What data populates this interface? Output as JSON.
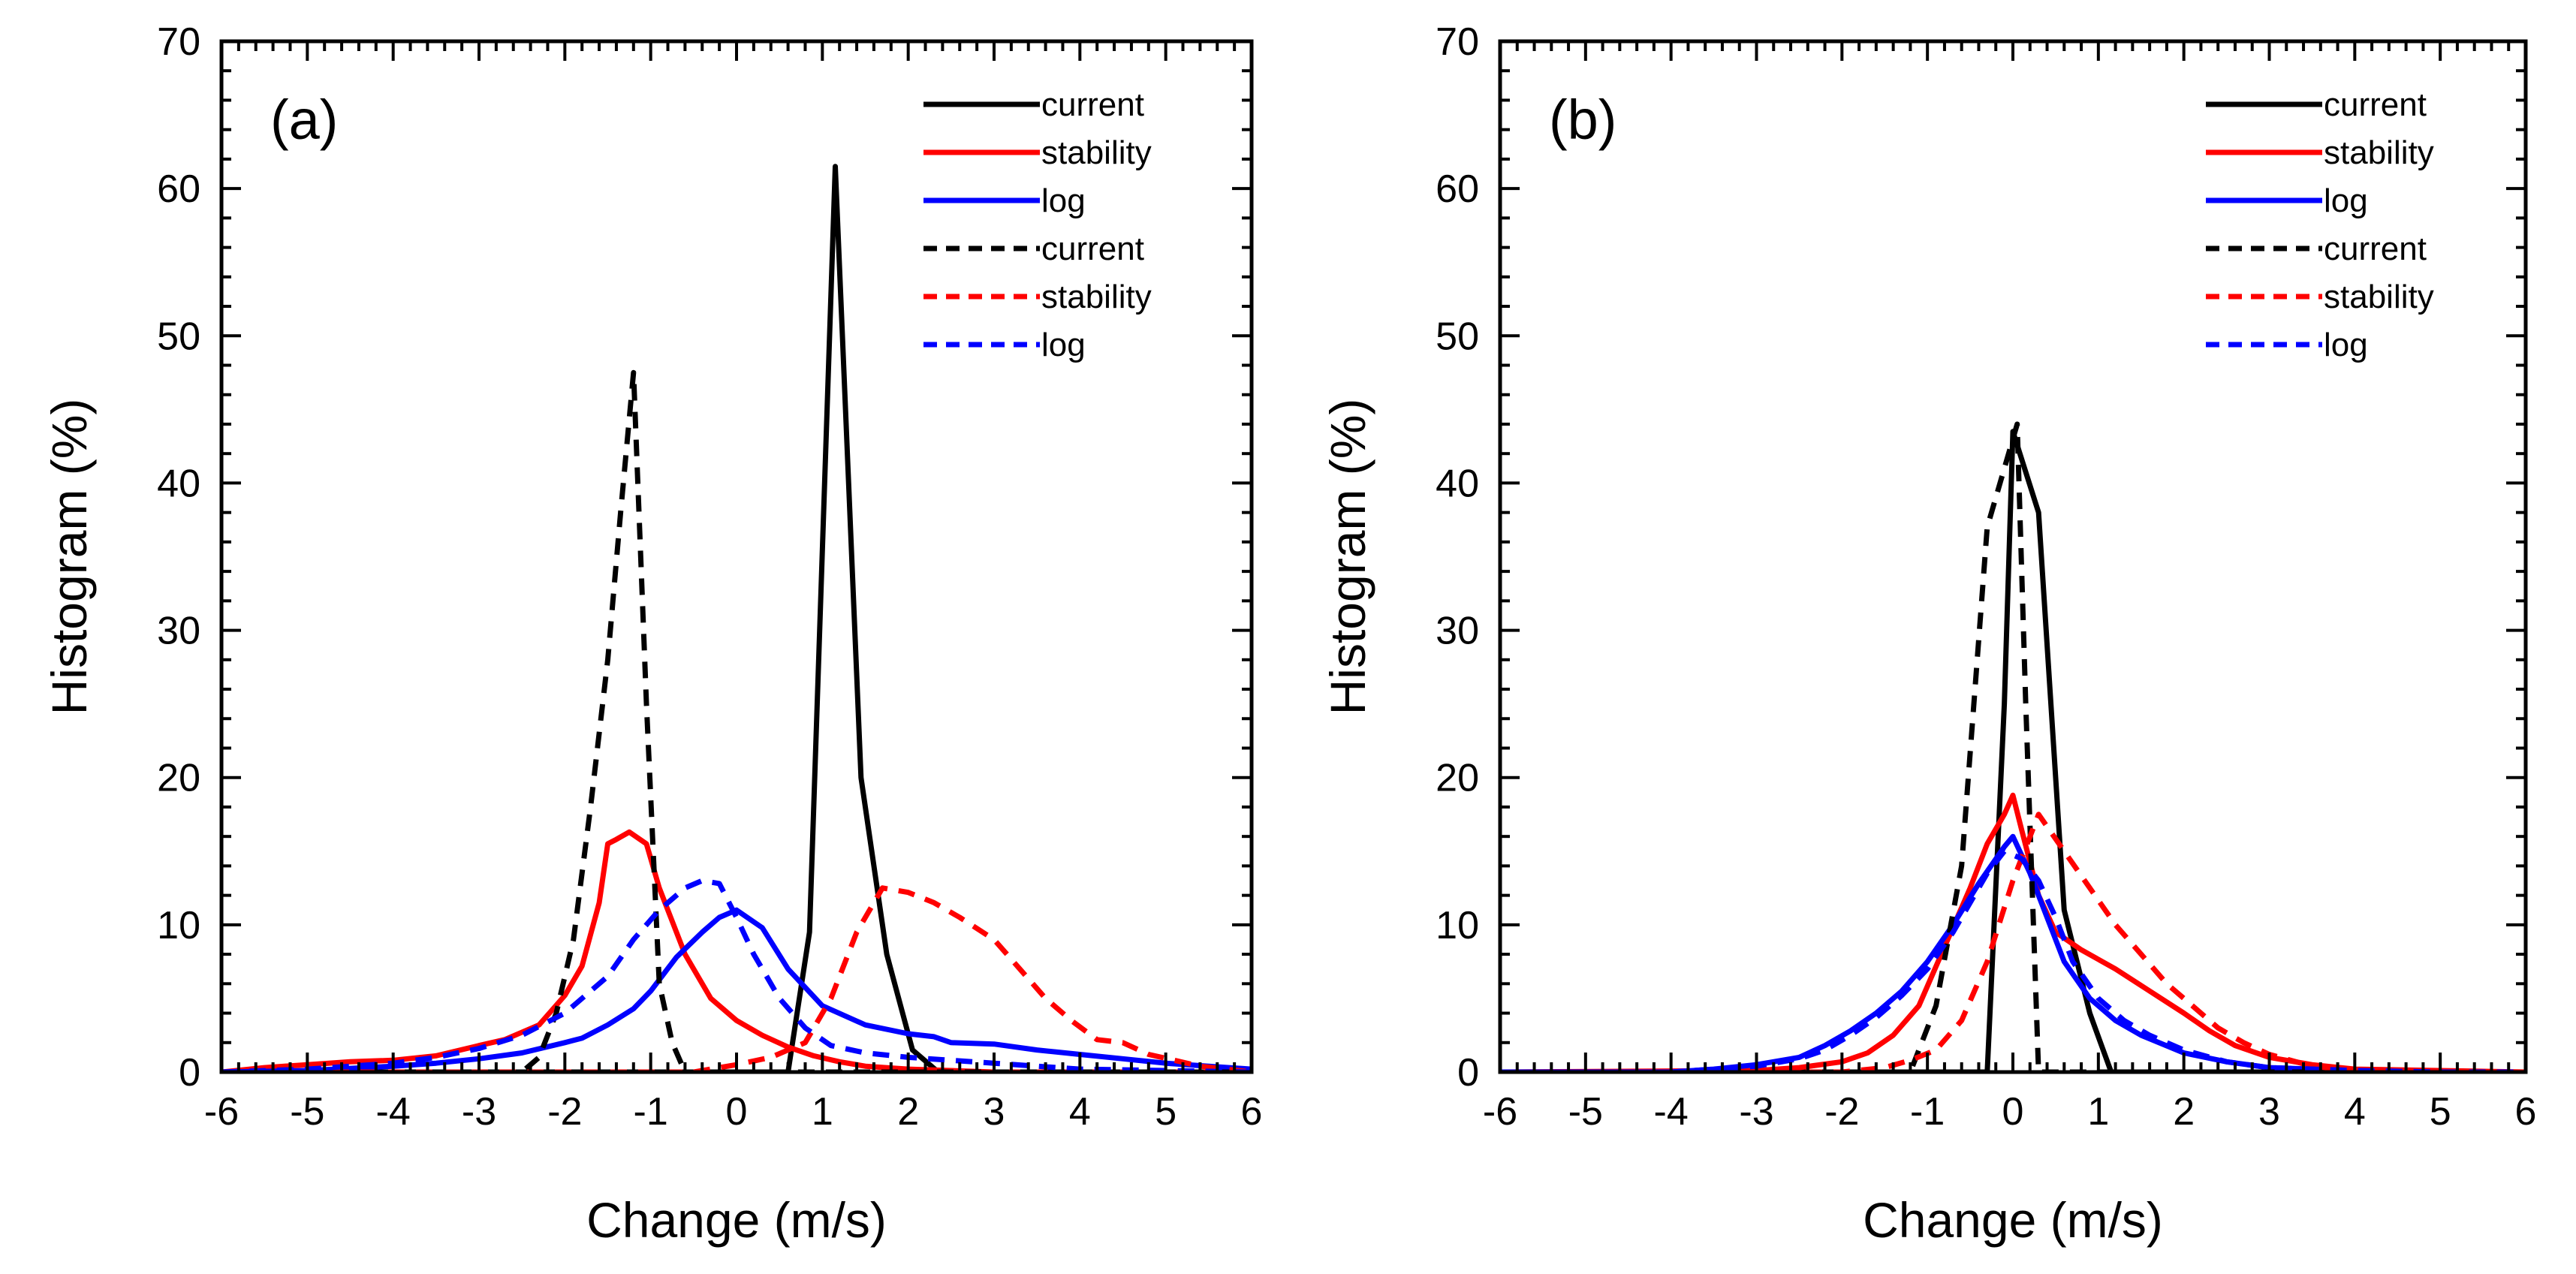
{
  "chart_data": [
    {
      "type": "line",
      "panel_label": "(a)",
      "xlabel": "Change (m/s)",
      "ylabel": "Histogram (%)",
      "xlim": [
        -6,
        6
      ],
      "ylim": [
        0,
        70
      ],
      "x_ticks": [
        -6,
        -5,
        -4,
        -3,
        -2,
        -1,
        0,
        1,
        2,
        3,
        4,
        5,
        6
      ],
      "y_ticks": [
        0,
        10,
        20,
        30,
        40,
        50,
        60,
        70
      ],
      "x_tick_labels": [
        "-6",
        "-5",
        "-4",
        "-3",
        "-2",
        "-1",
        "0",
        "1",
        "2",
        "3",
        "4",
        "5",
        "6"
      ],
      "y_tick_labels": [
        "0",
        "10",
        "20",
        "30",
        "40",
        "50",
        "60",
        "70"
      ],
      "legend_position": "top-right",
      "series": [
        {
          "name": "current",
          "color": "#000000",
          "style": "solid",
          "x": [
            -6,
            0.6,
            0.85,
            1.15,
            1.45,
            1.75,
            2.05,
            2.35,
            6
          ],
          "y": [
            0,
            0,
            9.5,
            61.5,
            20,
            8,
            1.5,
            0,
            0
          ]
        },
        {
          "name": "stability",
          "color": "#ff0000",
          "style": "solid",
          "x": [
            -6,
            -5.5,
            -5,
            -4.5,
            -4,
            -3.5,
            -3,
            -2.7,
            -2.3,
            -2,
            -1.8,
            -1.6,
            -1.5,
            -1.4,
            -1.25,
            -1.05,
            -0.9,
            -0.6,
            -0.3,
            0,
            0.3,
            0.6,
            0.9,
            1.2,
            1.5,
            2,
            2.5,
            3,
            4,
            5,
            6
          ],
          "y": [
            0,
            0.3,
            0.5,
            0.7,
            0.8,
            1.1,
            1.8,
            2.2,
            3.2,
            5.2,
            7.2,
            11.5,
            15.5,
            15.8,
            16.3,
            15.5,
            12.5,
            8,
            5,
            3.5,
            2.5,
            1.7,
            1.1,
            0.7,
            0.4,
            0.2,
            0.1,
            0,
            0,
            0,
            0
          ]
        },
        {
          "name": "log",
          "color": "#0000ff",
          "style": "solid",
          "x": [
            -6,
            -5,
            -4,
            -3.5,
            -3,
            -2.5,
            -2,
            -1.8,
            -1.5,
            -1.2,
            -1,
            -0.7,
            -0.4,
            -0.2,
            0,
            0.3,
            0.6,
            1,
            1.5,
            2,
            2.3,
            2.5,
            3,
            3.5,
            4,
            4.5,
            5,
            5.5,
            6
          ],
          "y": [
            0,
            0.1,
            0.4,
            0.6,
            0.9,
            1.3,
            2,
            2.3,
            3.2,
            4.3,
            5.5,
            7.8,
            9.5,
            10.5,
            11,
            9.8,
            7,
            4.5,
            3.2,
            2.6,
            2.4,
            2,
            1.9,
            1.5,
            1.2,
            0.9,
            0.6,
            0.4,
            0.2
          ]
        },
        {
          "name": "current",
          "color": "#000000",
          "style": "dashed",
          "x": [
            -6,
            -2.5,
            -2.3,
            -2.1,
            -1.9,
            -1.7,
            -1.5,
            -1.35,
            -1.2,
            -1.05,
            -0.9,
            -0.75,
            -0.6,
            6
          ],
          "y": [
            0,
            0,
            1,
            4,
            9,
            18,
            28,
            38,
            47.5,
            25,
            6,
            2,
            0,
            0
          ]
        },
        {
          "name": "stability",
          "color": "#ff0000",
          "style": "dashed",
          "x": [
            -6,
            -0.5,
            0,
            0.4,
            0.8,
            1.1,
            1.4,
            1.7,
            2,
            2.3,
            2.6,
            3,
            3.3,
            3.6,
            3.9,
            4.2,
            4.5,
            4.8,
            5.1,
            5.4,
            5.7,
            6
          ],
          "y": [
            0,
            0,
            0.5,
            1,
            2,
            5,
            9.5,
            12.5,
            12.2,
            11.5,
            10.5,
            9,
            7,
            5,
            3.5,
            2.2,
            2,
            1.2,
            0.8,
            0.4,
            0.2,
            0
          ]
        },
        {
          "name": "log",
          "color": "#0000ff",
          "style": "dashed",
          "x": [
            -6,
            -5,
            -4.5,
            -4,
            -3.5,
            -3,
            -2.5,
            -2,
            -1.5,
            -1.2,
            -0.9,
            -0.6,
            -0.4,
            -0.2,
            0,
            0.2,
            0.5,
            0.8,
            1.1,
            1.5,
            2,
            2.5,
            3,
            3.5,
            4,
            5,
            6
          ],
          "y": [
            0,
            0.2,
            0.4,
            0.6,
            1,
            1.6,
            2.5,
            4,
            6.5,
            9,
            11,
            12.5,
            13,
            12.8,
            10.5,
            8,
            5,
            3,
            1.8,
            1.3,
            1,
            0.8,
            0.6,
            0.4,
            0.2,
            0.1,
            0
          ]
        }
      ]
    },
    {
      "type": "line",
      "panel_label": "(b)",
      "xlabel": "Change (m/s)",
      "ylabel": "Histogram (%)",
      "xlim": [
        -6,
        6
      ],
      "ylim": [
        0,
        70
      ],
      "x_ticks": [
        -6,
        -5,
        -4,
        -3,
        -2,
        -1,
        0,
        1,
        2,
        3,
        4,
        5,
        6
      ],
      "y_ticks": [
        0,
        10,
        20,
        30,
        40,
        50,
        60,
        70
      ],
      "x_tick_labels": [
        "-6",
        "-5",
        "-4",
        "-3",
        "-2",
        "-1",
        "0",
        "1",
        "2",
        "3",
        "4",
        "5",
        "6"
      ],
      "y_tick_labels": [
        "0",
        "10",
        "20",
        "30",
        "40",
        "50",
        "60",
        "70"
      ],
      "legend_position": "top-right",
      "series": [
        {
          "name": "current",
          "color": "#000000",
          "style": "solid",
          "x": [
            -6,
            -0.3,
            -0.1,
            0,
            0.3,
            0.6,
            0.9,
            1.15,
            6
          ],
          "y": [
            0,
            0,
            25,
            43.5,
            38,
            11,
            4,
            0,
            0
          ]
        },
        {
          "name": "stability",
          "color": "#ff0000",
          "style": "solid",
          "x": [
            -6,
            -3,
            -2.5,
            -2,
            -1.7,
            -1.4,
            -1.1,
            -0.8,
            -0.5,
            -0.3,
            -0.1,
            0,
            0.1,
            0.3,
            0.5,
            0.8,
            1.2,
            1.6,
            2,
            2.3,
            2.6,
            3,
            3.5,
            4,
            5,
            6
          ],
          "y": [
            0,
            0.1,
            0.3,
            0.7,
            1.3,
            2.5,
            4.5,
            8.5,
            12.5,
            15.5,
            17.5,
            18.8,
            16.5,
            12,
            9.5,
            8.3,
            7,
            5.5,
            4,
            2.8,
            1.8,
            1,
            0.5,
            0.2,
            0.1,
            0
          ]
        },
        {
          "name": "log",
          "color": "#0000ff",
          "style": "solid",
          "x": [
            -6,
            -4,
            -3.5,
            -3,
            -2.5,
            -2.2,
            -1.9,
            -1.6,
            -1.3,
            -1,
            -0.7,
            -0.4,
            -0.1,
            0,
            0.2,
            0.4,
            0.6,
            0.9,
            1.2,
            1.5,
            2,
            2.5,
            3,
            4,
            5,
            6
          ],
          "y": [
            0,
            0,
            0.2,
            0.5,
            1,
            1.8,
            2.8,
            4,
            5.5,
            7.5,
            10,
            12.8,
            15.3,
            16,
            13.5,
            10.5,
            7.5,
            5,
            3.5,
            2.5,
            1.3,
            0.7,
            0.3,
            0.1,
            0,
            0
          ]
        },
        {
          "name": "current",
          "color": "#000000",
          "style": "dashed",
          "x": [
            -6,
            -1.2,
            -0.9,
            -0.6,
            -0.3,
            -0.1,
            0.05,
            0.15,
            0.3,
            6
          ],
          "y": [
            0,
            0,
            4.5,
            14,
            37,
            41,
            44,
            25,
            0,
            0
          ]
        },
        {
          "name": "stability",
          "color": "#ff0000",
          "style": "dashed",
          "x": [
            -6,
            -2,
            -1.5,
            -1.2,
            -0.9,
            -0.6,
            -0.3,
            0,
            0.3,
            0.6,
            0.9,
            1.2,
            1.5,
            1.8,
            2.1,
            2.4,
            2.7,
            3,
            3.5,
            4,
            5,
            6
          ],
          "y": [
            0,
            0,
            0.3,
            0.8,
            1.5,
            3.5,
            7.5,
            13,
            17.5,
            15,
            12.5,
            10,
            8,
            6,
            4.5,
            3,
            2,
            1.2,
            0.4,
            0.1,
            0,
            0
          ]
        },
        {
          "name": "log",
          "color": "#0000ff",
          "style": "dashed",
          "x": [
            -6,
            -4,
            -3.5,
            -3,
            -2.5,
            -2.2,
            -1.9,
            -1.6,
            -1.3,
            -1,
            -0.7,
            -0.5,
            -0.3,
            -0.1,
            0.1,
            0.3,
            0.5,
            0.7,
            1,
            1.3,
            1.6,
            2,
            2.5,
            3,
            4,
            5,
            6
          ],
          "y": [
            0,
            0,
            0.2,
            0.4,
            0.9,
            1.5,
            2.5,
            3.7,
            5.2,
            7,
            9.5,
            11.5,
            13.5,
            15,
            14.5,
            13,
            10.5,
            7.5,
            5,
            3.5,
            2.5,
            1.5,
            0.7,
            0.3,
            0.1,
            0,
            0
          ]
        }
      ]
    }
  ]
}
